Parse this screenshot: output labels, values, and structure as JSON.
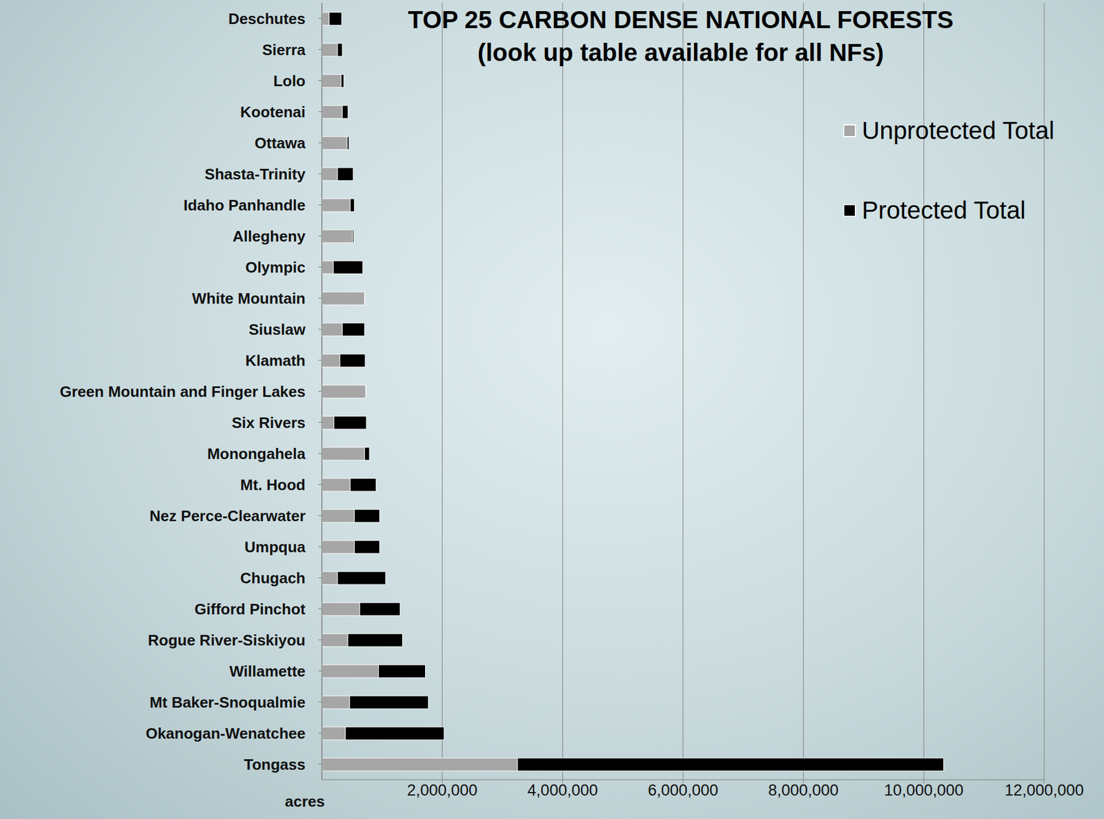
{
  "chart_data": {
    "type": "bar",
    "title": "TOP 25 CARBON DENSE NATIONAL FORESTS",
    "subtitle": "(look up table available for all NFs)",
    "x_label": "acres",
    "orientation": "horizontal",
    "stacked": true,
    "grid": true,
    "legend": "upper right",
    "categories": [
      "Deschutes",
      "Sierra",
      "Lolo",
      "Kootenai",
      "Ottawa",
      "Shasta-Trinity",
      "Idaho Panhandle",
      "Allegheny",
      "Olympic",
      "White Mountain",
      "Siuslaw",
      "Klamath",
      "Green Mountain and Finger Lakes",
      "Six Rivers",
      "Monongahela",
      "Mt. Hood",
      "Nez Perce-Clearwater",
      "Umpqua",
      "Chugach",
      "Gifford Pinchot",
      "Rogue River-Siskiyou",
      "Willamette",
      "Mt Baker-Snoqualmie",
      "Okanogan-Wenatchee",
      "Tongass"
    ],
    "series": [
      {
        "name": "Unprotected Total",
        "color": "#a6a6a6",
        "values": [
          120000,
          260000,
          320000,
          340000,
          420000,
          260000,
          470000,
          510000,
          190000,
          710000,
          340000,
          300000,
          730000,
          200000,
          710000,
          470000,
          540000,
          540000,
          260000,
          630000,
          430000,
          940000,
          460000,
          390000,
          3250000
        ]
      },
      {
        "name": "Protected Total",
        "color": "#000000",
        "values": [
          210000,
          80000,
          45000,
          95000,
          30000,
          260000,
          70000,
          20000,
          490000,
          5000,
          370000,
          420000,
          5000,
          540000,
          80000,
          430000,
          420000,
          420000,
          800000,
          670000,
          910000,
          780000,
          1310000,
          1640000,
          7080000
        ]
      }
    ],
    "xlim": [
      0,
      12000000
    ],
    "xticks": [
      {
        "value": 2000000,
        "label": "2,000,000"
      },
      {
        "value": 4000000,
        "label": "4,000,000"
      },
      {
        "value": 6000000,
        "label": "6,000,000"
      },
      {
        "value": 8000000,
        "label": "8,000,000"
      },
      {
        "value": 10000000,
        "label": "10,000,000"
      },
      {
        "value": 12000000,
        "label": "12,000,000"
      }
    ]
  }
}
